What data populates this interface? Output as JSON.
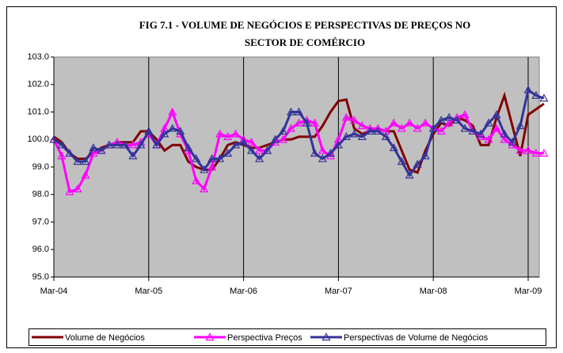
{
  "chart_data": {
    "type": "line",
    "title": [
      "FIG 7.1 - VOLUME DE NEGÓCIOS E PERSPECTIVAS DE PREÇOS NO",
      "SECTOR DE COMÉRCIO"
    ],
    "categories": [
      "Mar-04",
      null,
      null,
      null,
      null,
      null,
      null,
      null,
      null,
      null,
      null,
      null,
      "Mar-05",
      null,
      null,
      null,
      null,
      null,
      null,
      null,
      null,
      null,
      null,
      null,
      "Mar-06",
      null,
      null,
      null,
      null,
      null,
      null,
      null,
      null,
      null,
      null,
      null,
      "Mar-07",
      null,
      null,
      null,
      null,
      null,
      null,
      null,
      null,
      null,
      null,
      null,
      "Mar-08",
      null,
      null,
      null,
      null,
      null,
      null,
      null,
      null,
      null,
      null,
      null,
      "Mar-09",
      null,
      null
    ],
    "ylim": [
      95,
      103
    ],
    "yticks": [
      {
        "value": 95,
        "label": "95.0"
      },
      {
        "value": 96,
        "label": "96.0"
      },
      {
        "value": 97,
        "label": "97.0"
      },
      {
        "value": 98,
        "label": "98.0"
      },
      {
        "value": 99,
        "label": "99.0"
      },
      {
        "value": 100,
        "label": "100.0"
      },
      {
        "value": 101,
        "label": "101.0"
      },
      {
        "value": 102,
        "label": "102.0"
      },
      {
        "value": 103,
        "label": "103.0"
      }
    ],
    "grid": true,
    "plot_background": "#c0c0c0",
    "legend": "bottom",
    "series": [
      {
        "name": "Volume de Negócios",
        "color": "#800000",
        "marker": false,
        "values": [
          100.1,
          99.9,
          99.5,
          99.3,
          99.3,
          99.5,
          99.7,
          99.8,
          99.9,
          99.9,
          99.9,
          100.3,
          100.3,
          100.0,
          99.6,
          99.8,
          99.8,
          99.2,
          99.0,
          98.9,
          98.9,
          99.3,
          99.8,
          99.9,
          99.8,
          99.7,
          99.7,
          99.8,
          99.9,
          100.0,
          100.0,
          100.1,
          100.1,
          100.1,
          100.5,
          101.0,
          101.4,
          101.45,
          100.4,
          100.2,
          100.3,
          100.4,
          100.3,
          100.3,
          99.6,
          98.9,
          98.8,
          99.6,
          100.2,
          100.6,
          100.5,
          100.8,
          100.7,
          100.5,
          99.8,
          99.8,
          100.8,
          101.6,
          100.5,
          99.4,
          100.9,
          101.1,
          101.3
        ]
      },
      {
        "name": "Perspectiva Preços",
        "color": "#ff00ff",
        "marker": true,
        "values": [
          100.0,
          99.4,
          98.1,
          98.2,
          98.7,
          99.5,
          99.6,
          99.8,
          99.9,
          99.8,
          99.8,
          99.9,
          100.2,
          99.8,
          100.4,
          101.0,
          100.2,
          99.6,
          98.5,
          98.2,
          99.0,
          100.2,
          100.1,
          100.2,
          100.0,
          99.9,
          99.6,
          99.6,
          99.9,
          100.0,
          100.4,
          100.6,
          100.7,
          100.6,
          99.6,
          99.4,
          100.0,
          100.8,
          100.7,
          100.5,
          100.4,
          100.4,
          100.3,
          100.6,
          100.4,
          100.6,
          100.4,
          100.6,
          100.4,
          100.3,
          100.6,
          100.8,
          100.9,
          100.3,
          100.1,
          100.0,
          100.4,
          100.0,
          99.8,
          99.6,
          99.6,
          99.5,
          99.5
        ]
      },
      {
        "name": "Perspectivas de Volume de Negócios",
        "color": "#333399",
        "marker": true,
        "values": [
          100.0,
          99.8,
          99.5,
          99.2,
          99.2,
          99.7,
          99.6,
          99.8,
          99.8,
          99.8,
          99.4,
          99.8,
          100.3,
          99.8,
          100.2,
          100.4,
          100.3,
          99.7,
          99.3,
          98.9,
          99.3,
          99.3,
          99.5,
          99.8,
          99.9,
          99.6,
          99.3,
          99.6,
          100.0,
          100.3,
          101.0,
          101.0,
          100.6,
          99.5,
          99.3,
          99.5,
          99.8,
          100.1,
          100.2,
          100.1,
          100.3,
          100.3,
          100.1,
          99.7,
          99.2,
          98.7,
          99.1,
          99.4,
          100.4,
          100.7,
          100.8,
          100.7,
          100.4,
          100.3,
          100.2,
          100.6,
          100.9,
          100.2,
          99.9,
          100.5,
          101.8,
          101.6,
          101.5
        ]
      }
    ]
  }
}
